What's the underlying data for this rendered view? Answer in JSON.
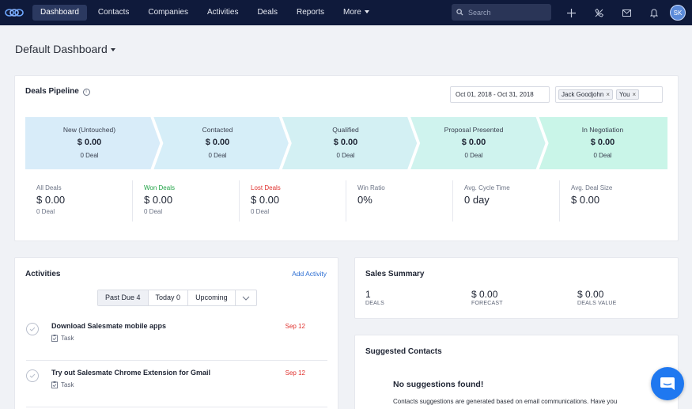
{
  "nav": {
    "items": [
      "Dashboard",
      "Contacts",
      "Companies",
      "Activities",
      "Deals",
      "Reports",
      "More"
    ],
    "search_placeholder": "Search",
    "avatar_initials": "SK"
  },
  "dashboard": {
    "title": "Default Dashboard"
  },
  "pipeline": {
    "title": "Deals Pipeline",
    "date_range": "Oct 01, 2018 - Oct 31, 2018",
    "users": [
      "Jack Goodjohn",
      "You"
    ],
    "chip_remove_symbol": "×",
    "stages": [
      {
        "name": "New (Untouched)",
        "amount": "$ 0.00",
        "count": "0 Deal",
        "color": "#d8ecf9"
      },
      {
        "name": "Contacted",
        "amount": "$ 0.00",
        "count": "0 Deal",
        "color": "#d6eef8"
      },
      {
        "name": "Qualified",
        "amount": "$ 0.00",
        "count": "0 Deal",
        "color": "#d3f0f3"
      },
      {
        "name": "Proposal Presented",
        "amount": "$ 0.00",
        "count": "0 Deal",
        "color": "#cff3ee"
      },
      {
        "name": "In Negotiation",
        "amount": "$ 0.00",
        "count": "0 Deal",
        "color": "#c9f5e8"
      }
    ],
    "metrics": [
      {
        "label": "All Deals",
        "value": "$ 0.00",
        "sub": "0 Deal"
      },
      {
        "label": "Won Deals",
        "value": "$ 0.00",
        "sub": "0 Deal"
      },
      {
        "label": "Lost Deals",
        "value": "$ 0.00",
        "sub": "0 Deal"
      },
      {
        "label": "Win Ratio",
        "value": "0%",
        "sub": ""
      },
      {
        "label": "Avg. Cycle Time",
        "value": "0 day",
        "sub": ""
      },
      {
        "label": "Avg. Deal Size",
        "value": "$ 0.00",
        "sub": ""
      }
    ]
  },
  "activities": {
    "title": "Activities",
    "add_label": "Add Activity",
    "tabs": [
      "Past Due 4",
      "Today 0",
      "Upcoming"
    ],
    "items": [
      {
        "title": "Download Salesmate mobile apps",
        "type": "Task",
        "date": "Sep 12"
      },
      {
        "title": "Try out Salesmate Chrome Extension for Gmail",
        "type": "Task",
        "date": "Sep 12"
      }
    ]
  },
  "sales_summary": {
    "title": "Sales Summary",
    "items": [
      {
        "value": "1",
        "label": "DEALS"
      },
      {
        "value": "$ 0.00",
        "label": "FORECAST"
      },
      {
        "value": "$ 0.00",
        "label": "DEALS VALUE"
      }
    ]
  },
  "suggested": {
    "title": "Suggested Contacts",
    "empty_title": "No suggestions found!",
    "empty_text": "Contacts suggestions are generated based on email communications. Have you"
  },
  "colors": {
    "nav_bg": "#0f1a3b",
    "accent": "#2d6fd3",
    "won": "#22a447",
    "lost": "#e0322f",
    "chat": "#1f78f0"
  }
}
